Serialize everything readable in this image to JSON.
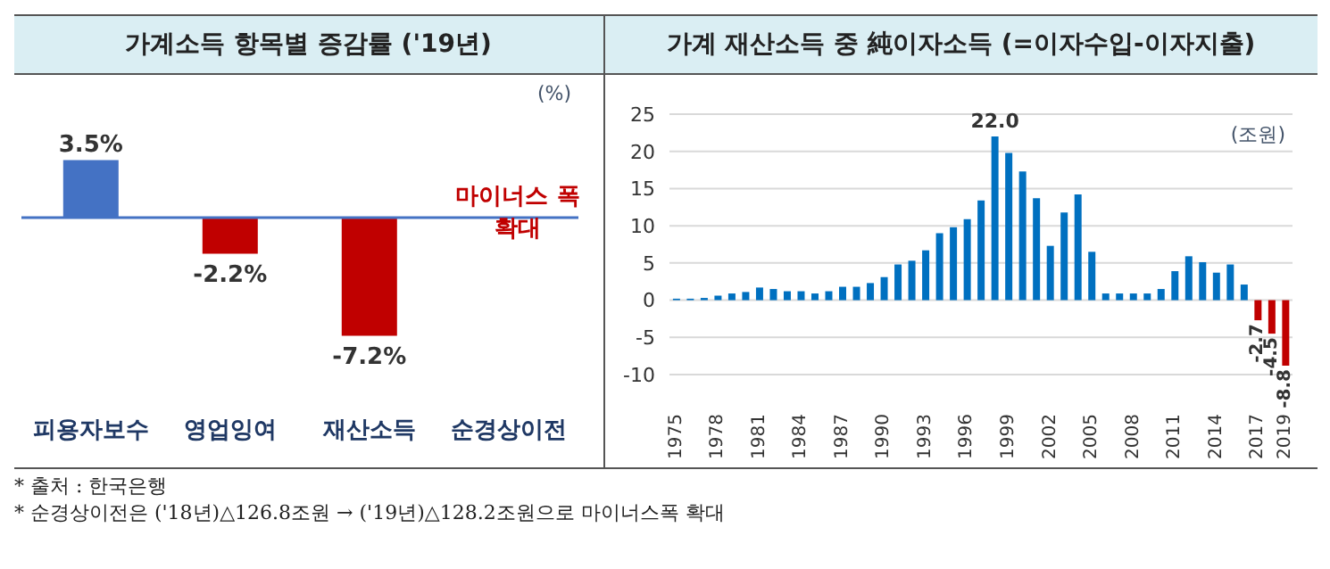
{
  "chart_data": [
    {
      "type": "bar",
      "title": "가계소득 항목별 증감률 ('19년)",
      "categories": [
        "피용자보수",
        "영업잉여",
        "재산소득",
        "순경상이전"
      ],
      "values": [
        3.5,
        -2.2,
        -7.2,
        null
      ],
      "colors": [
        "#4472c4",
        "#c00000",
        "#c00000",
        "#c00000"
      ],
      "value_labels": [
        "3.5%",
        "-2.2%",
        "-7.2%",
        null
      ],
      "tick_labels": "x",
      "ref_lines": [
        {
          "axis": "y",
          "value": 0,
          "color": "#4472c4"
        }
      ],
      "annotations": [
        "(%)",
        "마이너스 폭 확대"
      ]
    },
    {
      "type": "bar",
      "title": "가계 재산소득 중 純이자소득 (=이자수입-이자지출)",
      "categories": [
        "1975",
        null,
        null,
        "1978",
        null,
        null,
        "1981",
        null,
        null,
        "1984",
        null,
        null,
        "1987",
        null,
        null,
        "1990",
        null,
        null,
        "1993",
        null,
        null,
        "1996",
        null,
        null,
        "1999",
        null,
        null,
        "2002",
        null,
        null,
        "2005",
        null,
        null,
        "2008",
        null,
        null,
        "2011",
        null,
        null,
        "2014",
        null,
        null,
        "2017",
        null,
        "2019"
      ],
      "values": [
        0.2,
        0.2,
        0.3,
        0.6,
        0.9,
        1.1,
        1.7,
        1.5,
        1.2,
        1.2,
        0.9,
        1.2,
        1.8,
        1.8,
        2.3,
        3.1,
        4.8,
        5.3,
        6.7,
        9.0,
        9.8,
        10.9,
        13.4,
        22.0,
        19.8,
        17.3,
        13.7,
        7.3,
        11.8,
        14.2,
        6.5,
        0.9,
        0.9,
        0.9,
        0.9,
        1.5,
        3.9,
        5.9,
        5.1,
        3.7,
        4.8,
        2.1,
        -2.7,
        -4.5,
        -8.8
      ],
      "colors": [
        "#0070c0",
        "#0070c0",
        "#0070c0",
        "#0070c0",
        "#0070c0",
        "#0070c0",
        "#0070c0",
        "#0070c0",
        "#0070c0",
        "#0070c0",
        "#0070c0",
        "#0070c0",
        "#0070c0",
        "#0070c0",
        "#0070c0",
        "#0070c0",
        "#0070c0",
        "#0070c0",
        "#0070c0",
        "#0070c0",
        "#0070c0",
        "#0070c0",
        "#0070c0",
        "#0070c0",
        "#0070c0",
        "#0070c0",
        "#0070c0",
        "#0070c0",
        "#0070c0",
        "#0070c0",
        "#0070c0",
        "#0070c0",
        "#0070c0",
        "#0070c0",
        "#0070c0",
        "#0070c0",
        "#0070c0",
        "#0070c0",
        "#0070c0",
        "#0070c0",
        "#0070c0",
        "#0070c0",
        "#c00000",
        "#c00000",
        "#c00000"
      ],
      "value_labels": [
        null,
        null,
        null,
        null,
        null,
        null,
        null,
        null,
        null,
        null,
        null,
        null,
        null,
        null,
        null,
        null,
        null,
        null,
        null,
        null,
        null,
        null,
        null,
        "22.0",
        null,
        null,
        null,
        null,
        null,
        null,
        null,
        null,
        null,
        null,
        null,
        null,
        null,
        null,
        null,
        null,
        null,
        null,
        "-2.7",
        "-4.5",
        "-8.8"
      ],
      "ylim": [
        -10,
        25
      ],
      "yticks": [
        -10,
        -5,
        0,
        5,
        10,
        15,
        20,
        25
      ],
      "grid": "y",
      "annotations": [
        "(조원)",
        "* 출처 : 한국은행",
        "* 순경상이전은 ('18년)△126.8조원 → ('19년)△128.2조원으로 마이너스폭 확대"
      ]
    }
  ]
}
